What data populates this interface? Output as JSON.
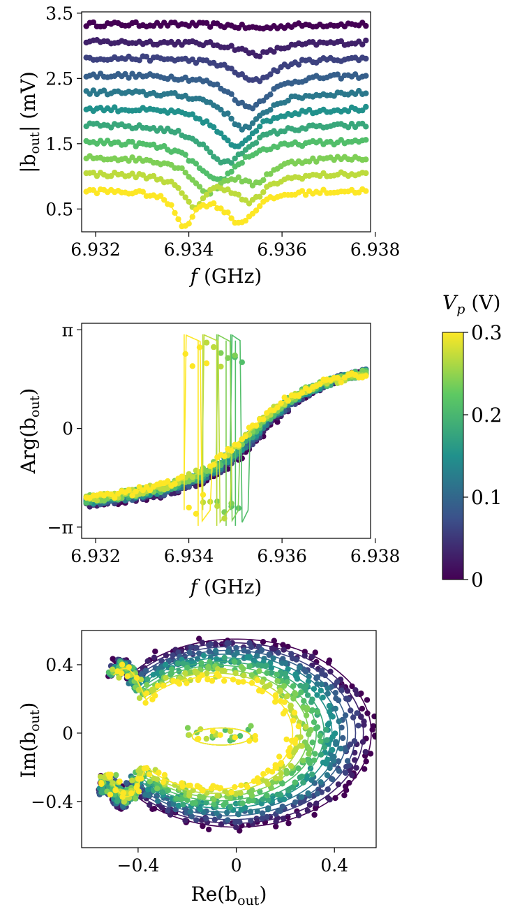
{
  "figure": {
    "colorbar": {
      "label_symbol": "V",
      "label_subscript": "p",
      "label_unit": "(V)",
      "ticks": [
        "0",
        "0.1",
        "0.2",
        "0.3"
      ],
      "tick_values": [
        0,
        0.1,
        0.2,
        0.3
      ],
      "range": [
        0,
        0.3
      ],
      "colormap": "viridis",
      "colors": [
        "#440154",
        "#3b528b",
        "#21918c",
        "#5ec962",
        "#fde725"
      ]
    }
  },
  "chart_data": [
    {
      "type": "scatter",
      "panel": "magnitude",
      "xlabel_symbol": "f",
      "xlabel_unit": "(GHz)",
      "ylabel_pre": "|b",
      "ylabel_sub": "out",
      "ylabel_post": "| (mV)",
      "xlim": [
        6.9317,
        6.9379
      ],
      "ylim": [
        0.15,
        3.52
      ],
      "xticks": [
        "6.932",
        "6.934",
        "6.936",
        "6.938"
      ],
      "xtick_values": [
        6.932,
        6.934,
        6.936,
        6.938
      ],
      "yticks": [
        "0.5",
        "1.5",
        "2.5",
        "3.5"
      ],
      "ytick_values": [
        0.5,
        1.5,
        2.5,
        3.5
      ],
      "series": [
        {
          "vp": 0.0,
          "baseline": 3.33,
          "dips": [
            [
              6.9355,
              0.06,
              0.001
            ]
          ]
        },
        {
          "vp": 0.03,
          "baseline": 3.06,
          "dips": [
            [
              6.9355,
              0.19,
              0.001
            ]
          ]
        },
        {
          "vp": 0.06,
          "baseline": 2.82,
          "dips": [
            [
              6.9354,
              0.36,
              0.001
            ]
          ]
        },
        {
          "vp": 0.09,
          "baseline": 2.56,
          "dips": [
            [
              6.9353,
              0.5,
              0.001
            ]
          ]
        },
        {
          "vp": 0.12,
          "baseline": 2.3,
          "dips": [
            [
              6.9352,
              0.56,
              0.001
            ]
          ]
        },
        {
          "vp": 0.15,
          "baseline": 2.05,
          "dips": [
            [
              6.935,
              0.58,
              0.001
            ]
          ]
        },
        {
          "vp": 0.18,
          "baseline": 1.8,
          "dips": [
            [
              6.9348,
              0.6,
              0.0011
            ]
          ]
        },
        {
          "vp": 0.21,
          "baseline": 1.55,
          "dips": [
            [
              6.9346,
              0.62,
              0.0011
            ]
          ]
        },
        {
          "vp": 0.24,
          "baseline": 1.3,
          "dips": [
            [
              6.9344,
              0.5,
              0.0008
            ],
            [
              6.9354,
              0.35,
              0.0008
            ]
          ]
        },
        {
          "vp": 0.27,
          "baseline": 1.05,
          "dips": [
            [
              6.9341,
              0.48,
              0.0006
            ],
            [
              6.9353,
              0.42,
              0.0008
            ]
          ]
        },
        {
          "vp": 0.3,
          "baseline": 0.79,
          "dips": [
            [
              6.9339,
              0.5,
              0.0005
            ],
            [
              6.9351,
              0.48,
              0.0008
            ]
          ]
        }
      ]
    },
    {
      "type": "scatter",
      "panel": "phase",
      "xlabel_symbol": "f",
      "xlabel_unit": "(GHz)",
      "ylabel_pre": "Arg(b",
      "ylabel_sub": "out",
      "ylabel_post": ")",
      "xlim": [
        6.9317,
        6.9379
      ],
      "ylim": [
        -3.5,
        3.35
      ],
      "xticks": [
        "6.932",
        "6.934",
        "6.936",
        "6.938"
      ],
      "xtick_values": [
        6.932,
        6.934,
        6.936,
        6.938
      ],
      "yticks": [
        "−π",
        "0",
        "π"
      ],
      "ytick_values": [
        -3.14159,
        0,
        3.14159
      ],
      "center_f": 6.9356,
      "width_f": 0.0011,
      "jumps": [
        {
          "vp": 0.3,
          "f_up": 6.9339,
          "f_down": 6.9342
        },
        {
          "vp": 0.27,
          "f_up": 6.9343,
          "f_down": 6.9346
        },
        {
          "vp": 0.24,
          "f_up": 6.9346,
          "f_down": 6.9348
        },
        {
          "vp": 0.21,
          "f_up": 6.9349,
          "f_down": 6.935
        }
      ]
    },
    {
      "type": "scatter",
      "panel": "iq",
      "xlabel_pre": "Re(b",
      "xlabel_sub": "out",
      "xlabel_post": ")",
      "ylabel_pre": "Im(b",
      "ylabel_sub": "out",
      "ylabel_post": ")",
      "xlim": [
        -0.63,
        0.57
      ],
      "ylim": [
        -0.67,
        0.6
      ],
      "xticks": [
        "−0.4",
        "0",
        "0.4"
      ],
      "xtick_values": [
        -0.4,
        0,
        0.4
      ],
      "yticks": [
        "−0.4",
        "0",
        "0.4"
      ],
      "ytick_values": [
        -0.4,
        0,
        0.4
      ]
    }
  ]
}
